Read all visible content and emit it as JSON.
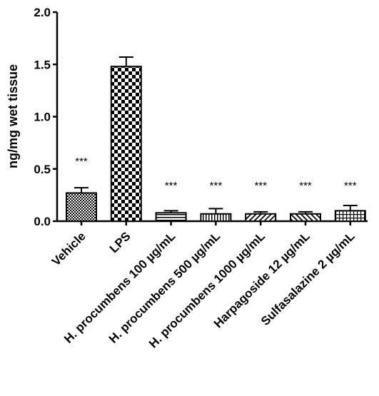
{
  "chart_data": {
    "type": "bar",
    "title": "",
    "xlabel": "",
    "ylabel": "ng/mg wet tissue",
    "ylim": [
      0,
      2.0
    ],
    "yticks": [
      0.0,
      0.5,
      1.0,
      1.5,
      2.0
    ],
    "ytick_labels": [
      "0.0",
      "0.5",
      "1.0",
      "1.5",
      "2.0"
    ],
    "categories": [
      "Vehicle",
      "LPS",
      "H. procumbens 100 µg/mL",
      "H. procumbens 500 µg/mL",
      "H. procumbens 1000 µg/mL",
      "Harpagoside 12 µg/mL",
      "Sulfasalazine 2 µg/mL"
    ],
    "values": [
      0.27,
      1.48,
      0.08,
      0.07,
      0.07,
      0.07,
      0.1
    ],
    "error": [
      0.05,
      0.09,
      0.02,
      0.05,
      0.02,
      0.02,
      0.05
    ],
    "annotations": [
      "***",
      "",
      "***",
      "***",
      "***",
      "***",
      "***"
    ],
    "patterns": [
      "crosshatch",
      "checker",
      "horizontal",
      "vertical",
      "diagonal-down",
      "diagonal-up",
      "grid"
    ],
    "grid": false,
    "legend": "none"
  }
}
